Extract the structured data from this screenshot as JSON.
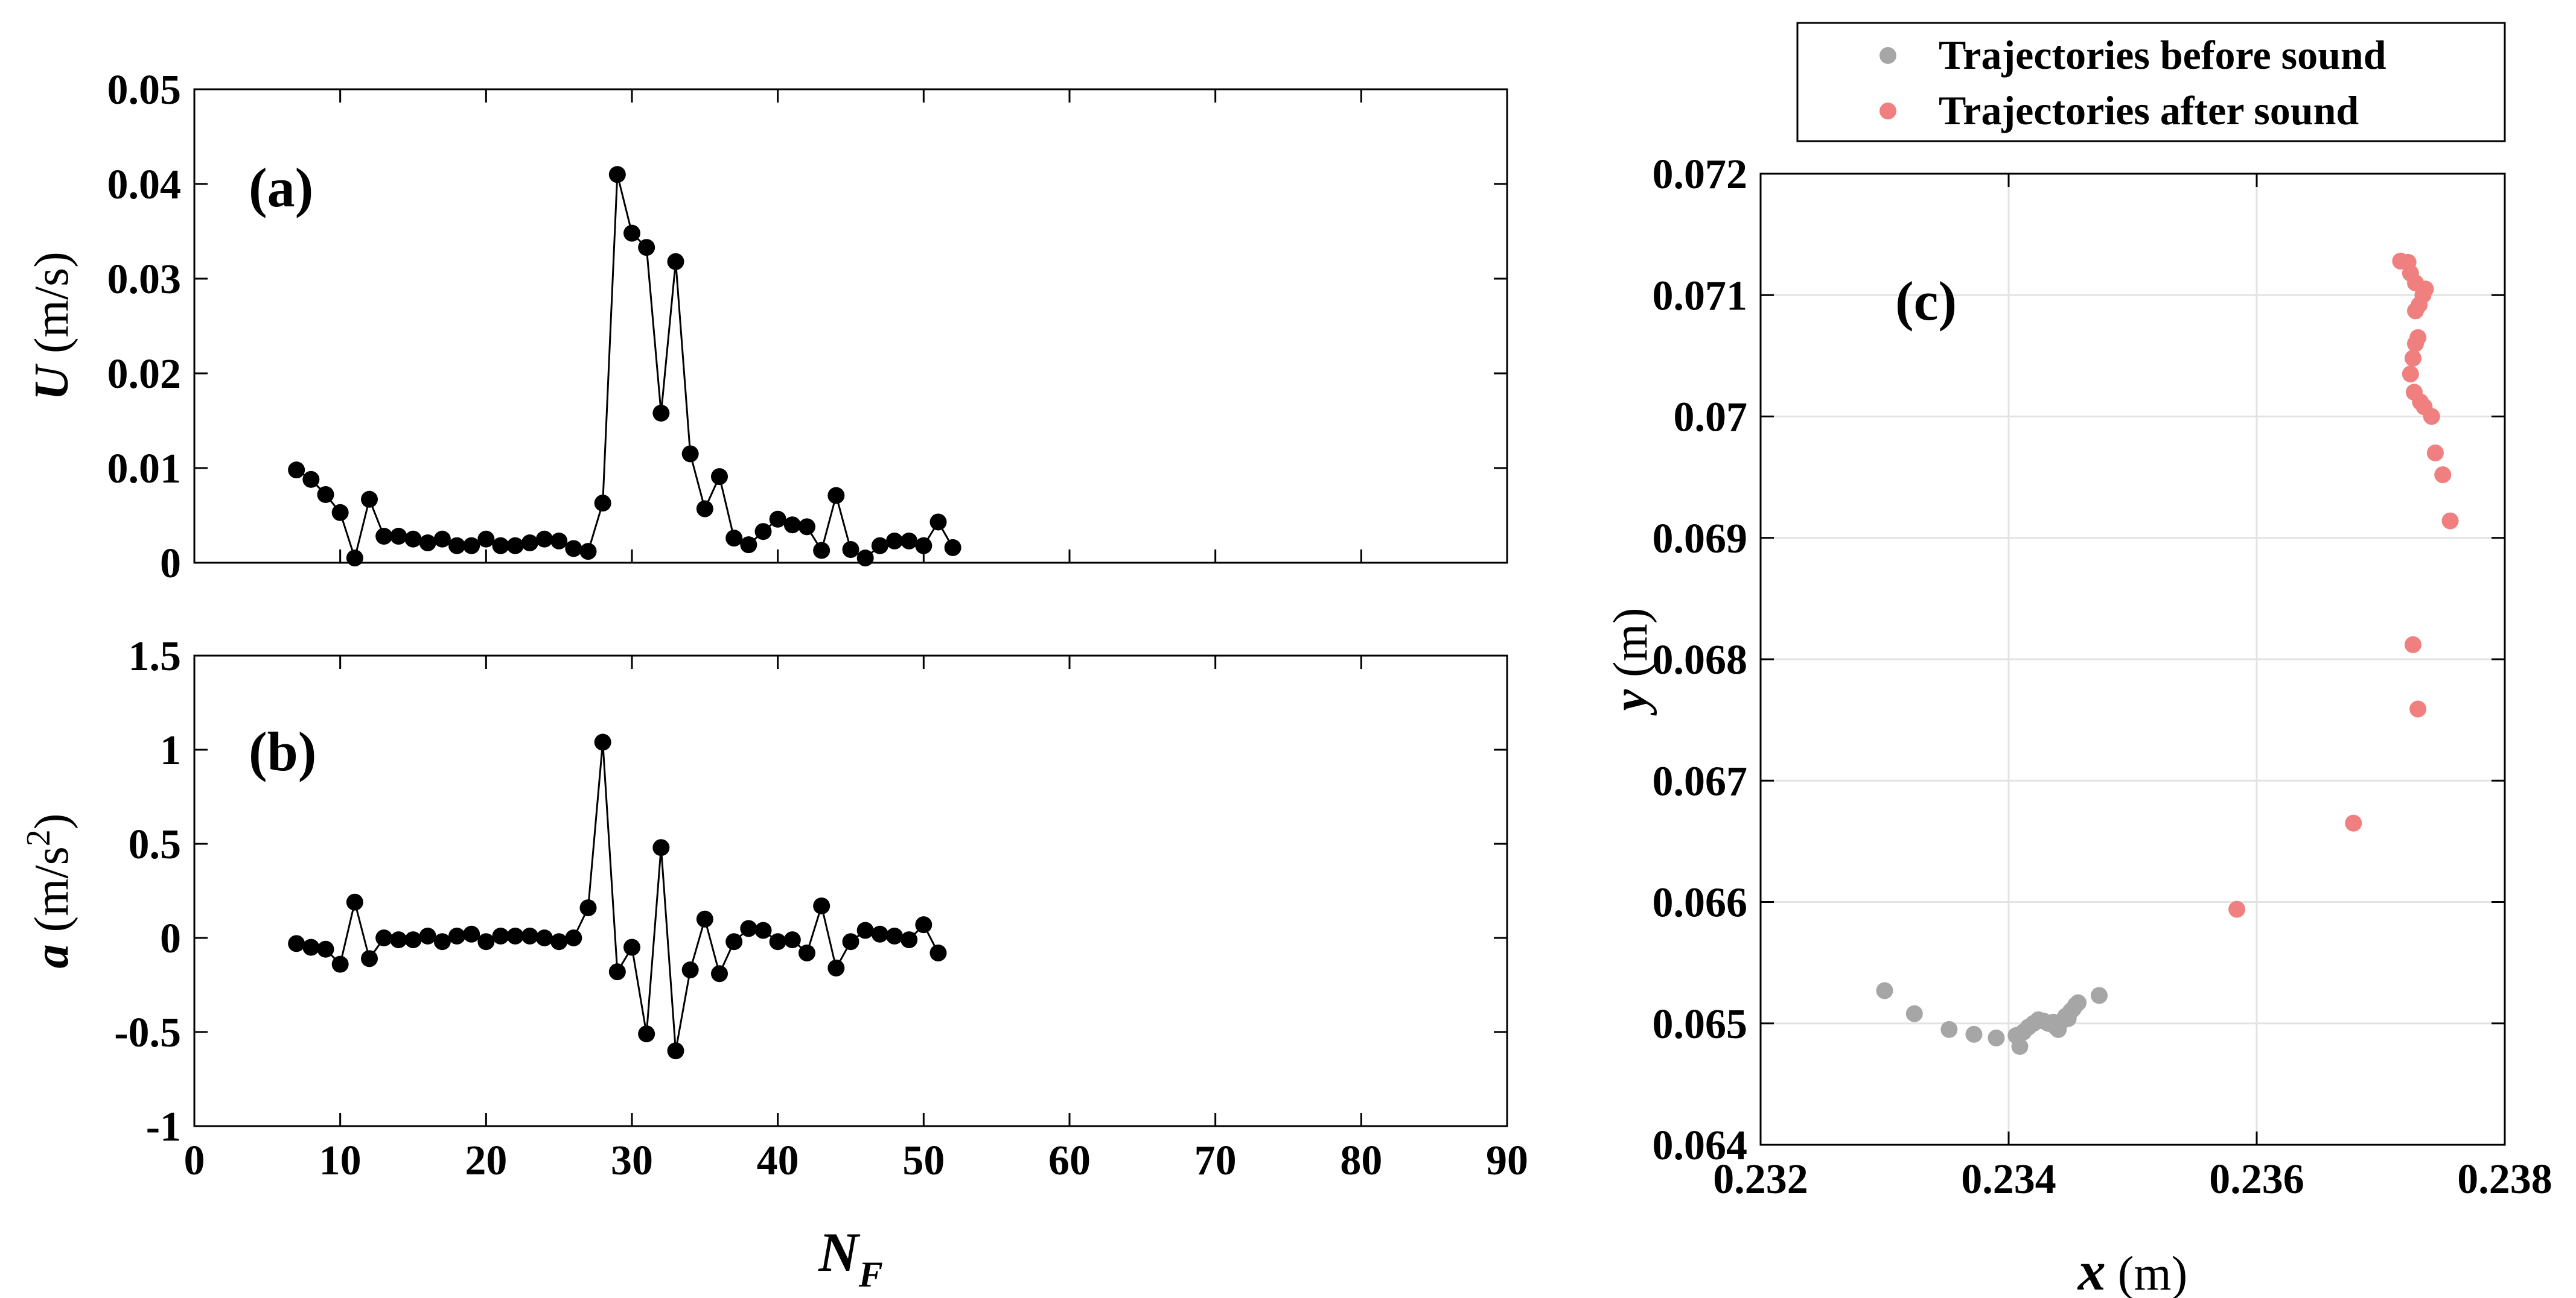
{
  "chart_data": [
    {
      "id": "a",
      "type": "line",
      "panel_label": "(a)",
      "ylabel_sym": "U",
      "ylabel_unit": "(m/s)",
      "xlabel": "",
      "xlim": [
        0,
        90
      ],
      "ylim": [
        0,
        0.05
      ],
      "xticks": [],
      "yticks": [
        {
          "v": 0,
          "label": "0"
        },
        {
          "v": 0.01,
          "label": "0.01"
        },
        {
          "v": 0.02,
          "label": "0.02"
        },
        {
          "v": 0.03,
          "label": "0.03"
        },
        {
          "v": 0.04,
          "label": "0.04"
        },
        {
          "v": 0.05,
          "label": "0.05"
        }
      ],
      "grid": false,
      "color": "#000000",
      "points": [
        [
          7,
          0.0098
        ],
        [
          8,
          0.0088
        ],
        [
          9,
          0.0072
        ],
        [
          10,
          0.0053
        ],
        [
          11,
          0.0005
        ],
        [
          12,
          0.0067
        ],
        [
          13,
          0.0028
        ],
        [
          14,
          0.0028
        ],
        [
          15,
          0.0025
        ],
        [
          16,
          0.0021
        ],
        [
          17,
          0.0025
        ],
        [
          18,
          0.0018
        ],
        [
          19,
          0.0018
        ],
        [
          20,
          0.0025
        ],
        [
          21,
          0.0018
        ],
        [
          22,
          0.0018
        ],
        [
          23,
          0.0021
        ],
        [
          24,
          0.0025
        ],
        [
          25,
          0.0023
        ],
        [
          26,
          0.0015
        ],
        [
          27,
          0.0012
        ],
        [
          28,
          0.0063
        ],
        [
          29,
          0.041
        ],
        [
          30,
          0.0348
        ],
        [
          31,
          0.0333
        ],
        [
          32,
          0.0158
        ],
        [
          33,
          0.0318
        ],
        [
          34,
          0.0115
        ],
        [
          35,
          0.0057
        ],
        [
          36,
          0.0091
        ],
        [
          37,
          0.0026
        ],
        [
          38,
          0.0019
        ],
        [
          39,
          0.0033
        ],
        [
          40,
          0.0046
        ],
        [
          41,
          0.004
        ],
        [
          42,
          0.0038
        ],
        [
          43,
          0.0013
        ],
        [
          44,
          0.0071
        ],
        [
          45,
          0.0014
        ],
        [
          46,
          0.0005
        ],
        [
          47,
          0.0018
        ],
        [
          48,
          0.0023
        ],
        [
          49,
          0.0023
        ],
        [
          50,
          0.0018
        ],
        [
          51,
          0.0043
        ],
        [
          52,
          0.0016
        ]
      ]
    },
    {
      "id": "b",
      "type": "line",
      "panel_label": "(b)",
      "ylabel_sym": "a",
      "ylabel_unit": "(m/s",
      "ylabel_sup": "2",
      "ylabel_close": ")",
      "xlabel_sym": "N",
      "xlabel_sub": "F",
      "xlim": [
        0,
        90
      ],
      "ylim": [
        -1,
        1.5
      ],
      "xticks": [
        {
          "v": 0,
          "label": "0"
        },
        {
          "v": 10,
          "label": "10"
        },
        {
          "v": 20,
          "label": "20"
        },
        {
          "v": 30,
          "label": "30"
        },
        {
          "v": 40,
          "label": "40"
        },
        {
          "v": 50,
          "label": "50"
        },
        {
          "v": 60,
          "label": "60"
        },
        {
          "v": 70,
          "label": "70"
        },
        {
          "v": 80,
          "label": "80"
        },
        {
          "v": 90,
          "label": "90"
        }
      ],
      "yticks": [
        {
          "v": -1,
          "label": "-1"
        },
        {
          "v": -0.5,
          "label": "-0.5"
        },
        {
          "v": 0,
          "label": "0"
        },
        {
          "v": 0.5,
          "label": "0.5"
        },
        {
          "v": 1,
          "label": "1"
        },
        {
          "v": 1.5,
          "label": "1.5"
        }
      ],
      "grid": false,
      "color": "#000000",
      "points": [
        [
          7,
          -0.03
        ],
        [
          8,
          -0.05
        ],
        [
          9,
          -0.06
        ],
        [
          10,
          -0.14
        ],
        [
          11,
          0.19
        ],
        [
          12,
          -0.11
        ],
        [
          13,
          0.0
        ],
        [
          14,
          -0.01
        ],
        [
          15,
          -0.01
        ],
        [
          16,
          0.01
        ],
        [
          17,
          -0.02
        ],
        [
          18,
          0.01
        ],
        [
          19,
          0.02
        ],
        [
          20,
          -0.02
        ],
        [
          21,
          0.01
        ],
        [
          22,
          0.01
        ],
        [
          23,
          0.01
        ],
        [
          24,
          0.0
        ],
        [
          25,
          -0.02
        ],
        [
          26,
          0.0
        ],
        [
          27,
          0.16
        ],
        [
          28,
          1.04
        ],
        [
          29,
          -0.18
        ],
        [
          30,
          -0.05
        ],
        [
          31,
          -0.51
        ],
        [
          32,
          0.48
        ],
        [
          33,
          -0.6
        ],
        [
          34,
          -0.17
        ],
        [
          35,
          0.1
        ],
        [
          36,
          -0.19
        ],
        [
          37,
          -0.02
        ],
        [
          38,
          0.05
        ],
        [
          39,
          0.04
        ],
        [
          40,
          -0.02
        ],
        [
          41,
          -0.01
        ],
        [
          42,
          -0.08
        ],
        [
          43,
          0.17
        ],
        [
          44,
          -0.16
        ],
        [
          45,
          -0.02
        ],
        [
          46,
          0.04
        ],
        [
          47,
          0.02
        ],
        [
          48,
          0.01
        ],
        [
          49,
          -0.01
        ],
        [
          50,
          0.07
        ],
        [
          51,
          -0.08
        ]
      ]
    },
    {
      "id": "c",
      "type": "scatter",
      "panel_label": "(c)",
      "xlabel_sym": "x",
      "xlabel_unit": "(m)",
      "ylabel_sym": "y",
      "ylabel_unit": "(m)",
      "xlim": [
        0.232,
        0.238
      ],
      "ylim": [
        0.064,
        0.072
      ],
      "xticks": [
        {
          "v": 0.232,
          "label": "0.232"
        },
        {
          "v": 0.234,
          "label": "0.234"
        },
        {
          "v": 0.236,
          "label": "0.236"
        },
        {
          "v": 0.238,
          "label": "0.238"
        }
      ],
      "yticks": [
        {
          "v": 0.064,
          "label": "0.064"
        },
        {
          "v": 0.065,
          "label": "0.065"
        },
        {
          "v": 0.066,
          "label": "0.066"
        },
        {
          "v": 0.067,
          "label": "0.067"
        },
        {
          "v": 0.068,
          "label": "0.068"
        },
        {
          "v": 0.069,
          "label": "0.069"
        },
        {
          "v": 0.07,
          "label": "0.07"
        },
        {
          "v": 0.071,
          "label": "0.071"
        },
        {
          "v": 0.072,
          "label": "0.072"
        }
      ],
      "grid": true,
      "legend": "top",
      "series": [
        {
          "name": "Trajectories before sound",
          "color": "#a6a6a6",
          "points": [
            [
              0.233,
              0.06527
            ],
            [
              0.23324,
              0.06508
            ],
            [
              0.23352,
              0.06495
            ],
            [
              0.23372,
              0.06491
            ],
            [
              0.2339,
              0.06488
            ],
            [
              0.23406,
              0.0649
            ],
            [
              0.23409,
              0.06481
            ],
            [
              0.23412,
              0.06493
            ],
            [
              0.23416,
              0.06497
            ],
            [
              0.2342,
              0.065
            ],
            [
              0.23424,
              0.06503
            ],
            [
              0.23428,
              0.06502
            ],
            [
              0.23432,
              0.065
            ],
            [
              0.23436,
              0.06501
            ],
            [
              0.23438,
              0.06497
            ],
            [
              0.2344,
              0.06495
            ],
            [
              0.23443,
              0.06502
            ],
            [
              0.23446,
              0.06506
            ],
            [
              0.23448,
              0.06504
            ],
            [
              0.2345,
              0.0651
            ],
            [
              0.23452,
              0.06512
            ],
            [
              0.23454,
              0.06515
            ],
            [
              0.23456,
              0.06517
            ],
            [
              0.23473,
              0.06523
            ]
          ]
        },
        {
          "name": "Trajectories after sound",
          "color": "#f08080",
          "points": [
            [
              0.23584,
              0.06594
            ],
            [
              0.23678,
              0.06665
            ],
            [
              0.2373,
              0.06759
            ],
            [
              0.23726,
              0.06812
            ],
            [
              0.23756,
              0.06914
            ],
            [
              0.2375,
              0.06952
            ],
            [
              0.23744,
              0.0697
            ],
            [
              0.23741,
              0.07
            ],
            [
              0.23735,
              0.07008
            ],
            [
              0.23732,
              0.07012
            ],
            [
              0.23727,
              0.0702
            ],
            [
              0.23724,
              0.07035
            ],
            [
              0.23726,
              0.07048
            ],
            [
              0.23728,
              0.0706
            ],
            [
              0.2373,
              0.07065
            ],
            [
              0.23728,
              0.07087
            ],
            [
              0.23731,
              0.07092
            ],
            [
              0.23734,
              0.071
            ],
            [
              0.23736,
              0.07105
            ],
            [
              0.23728,
              0.0711
            ],
            [
              0.23724,
              0.07118
            ],
            [
              0.23722,
              0.07127
            ],
            [
              0.23716,
              0.07128
            ]
          ]
        }
      ]
    }
  ]
}
